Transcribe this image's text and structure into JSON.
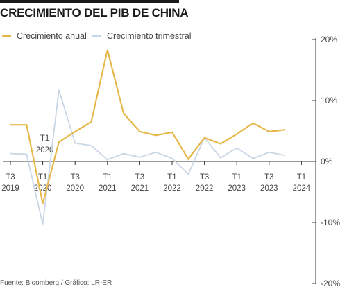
{
  "title": "CRECIMIENTO DEL PIB DE CHINA",
  "source": "Fuente: Bloomberg / Gráfico: LR-ER",
  "colors": {
    "annual": "#e6b84a",
    "quarterly": "#c9d6e6",
    "axis": "#333333",
    "grid": "#bfbfbf",
    "text": "#444444"
  },
  "chart_data": {
    "type": "line",
    "title": "CRECIMIENTO DEL PIB DE CHINA",
    "ylim": [
      -20,
      20
    ],
    "yticks": [
      {
        "value": 20,
        "label": "20%"
      },
      {
        "value": 10,
        "label": "10%"
      },
      {
        "value": 0,
        "label": "0%"
      },
      {
        "value": -10,
        "label": "-10%"
      },
      {
        "value": -20,
        "label": "-20%"
      }
    ],
    "xticks": [
      {
        "index": 0,
        "line1": "T3",
        "line2": "2019"
      },
      {
        "index": 2,
        "line1": "T1",
        "line2": "2020"
      },
      {
        "index": 4,
        "line1": "T3",
        "line2": "2020"
      },
      {
        "index": 6,
        "line1": "T1",
        "line2": "2021"
      },
      {
        "index": 8,
        "line1": "T3",
        "line2": "2021"
      },
      {
        "index": 10,
        "line1": "T1",
        "line2": "2022"
      },
      {
        "index": 12,
        "line1": "T3",
        "line2": "2022"
      },
      {
        "index": 14,
        "line1": "T1",
        "line2": "2023"
      },
      {
        "index": 16,
        "line1": "T3",
        "line2": "2023"
      },
      {
        "index": 18,
        "line1": "T1",
        "line2": "2024"
      }
    ],
    "series": [
      {
        "name": "Crecimiento anual",
        "values": [
          6.0,
          6.0,
          -6.9,
          3.2,
          4.9,
          6.5,
          18.3,
          7.9,
          4.9,
          4.3,
          4.8,
          0.4,
          3.9,
          2.9,
          4.5,
          6.3,
          4.9,
          5.2
        ]
      },
      {
        "name": "Crecimiento trimestral",
        "values": [
          1.3,
          1.2,
          -10.3,
          11.7,
          3.0,
          2.6,
          0.3,
          1.3,
          0.7,
          1.5,
          0.5,
          -2.1,
          3.9,
          0.6,
          2.2,
          0.5,
          1.5,
          1.0
        ]
      }
    ],
    "annotation": {
      "line1": "T1",
      "line2": "2020",
      "index": 2
    }
  }
}
